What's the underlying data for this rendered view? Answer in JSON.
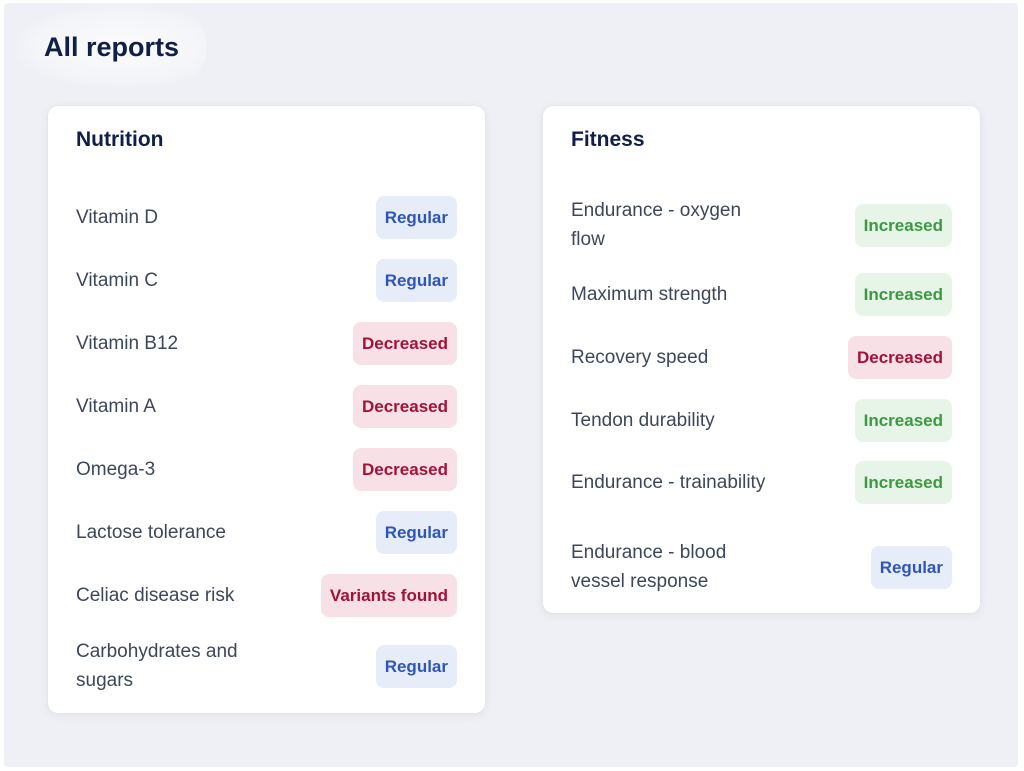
{
  "page": {
    "title": "All reports"
  },
  "nutrition": {
    "title": "Nutrition",
    "items": [
      {
        "label": "Vitamin D",
        "status": "Regular"
      },
      {
        "label": "Vitamin C",
        "status": "Regular"
      },
      {
        "label": "Vitamin B12",
        "status": "Decreased"
      },
      {
        "label": "Vitamin A",
        "status": "Decreased"
      },
      {
        "label": "Omega-3",
        "status": "Decreased"
      },
      {
        "label": "Lactose tolerance",
        "status": "Regular"
      },
      {
        "label": "Celiac disease risk",
        "status": "Variants found"
      },
      {
        "label": "Carbohydrates and sugars",
        "status": "Regular"
      }
    ]
  },
  "fitness": {
    "title": "Fitness",
    "items": [
      {
        "label": "Endurance - oxygen flow",
        "status": "Increased"
      },
      {
        "label": "Maximum strength",
        "status": "Increased"
      },
      {
        "label": "Recovery speed",
        "status": "Decreased"
      },
      {
        "label": "Tendon durability",
        "status": "Increased"
      },
      {
        "label": "Endurance - trainability",
        "status": "Increased"
      },
      {
        "label": "Endurance - blood vessel response",
        "status": "Regular"
      }
    ]
  },
  "colors": {
    "regular_text": "#2e56b8",
    "regular_bg": "#e7edf8",
    "decreased_text": "#a3123a",
    "decreased_bg": "#f7e1e6",
    "increased_text": "#3b9a41",
    "increased_bg": "#e7f5e8"
  }
}
